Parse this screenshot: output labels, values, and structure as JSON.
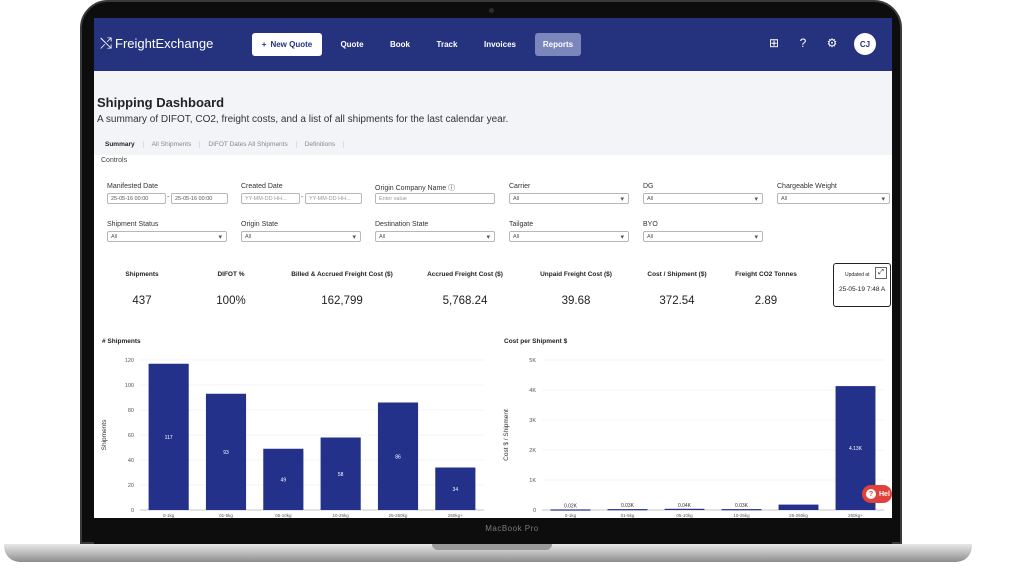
{
  "device": {
    "brand_label": "MacBook Pro"
  },
  "header": {
    "logo_text": "FreightExchange",
    "new_quote_label": "New Quote",
    "nav": [
      "Quote",
      "Book",
      "Track",
      "Invoices",
      "Reports"
    ],
    "active_nav": "Reports",
    "avatar_initials": "CJ",
    "icons": [
      "qr-add-icon",
      "help-circle-icon",
      "gear-icon"
    ]
  },
  "page": {
    "title": "Shipping Dashboard",
    "subtitle": "A summary of DIFOT, CO2, freight costs, and a list of all shipments for the last calendar year.",
    "tabs": [
      "Summary",
      "All Shipments",
      "DIFOT Dates All Shipments",
      "Definitions"
    ],
    "active_tab": "Summary",
    "controls_label": "Controls"
  },
  "filters": {
    "manifested_date": {
      "label": "Manifested Date",
      "from": "25-05-16 00:00",
      "to": "25-05-16 00:00"
    },
    "created_date": {
      "label": "Created Date",
      "from_placeholder": "YY-MM-DD HH...",
      "to_placeholder": "YY-MM-DD HH..."
    },
    "origin_company_name": {
      "label": "Origin Company Name",
      "placeholder": "Enter value"
    },
    "carrier": {
      "label": "Carrier",
      "value": "All"
    },
    "dg": {
      "label": "DG",
      "value": "All"
    },
    "chargeable_weight": {
      "label": "Chargeable Weight",
      "value": "All"
    },
    "shipment_status": {
      "label": "Shipment Status",
      "value": "All"
    },
    "origin_state": {
      "label": "Origin State",
      "value": "All"
    },
    "destination_state": {
      "label": "Destination State",
      "value": "All"
    },
    "tailgate": {
      "label": "Tailgate",
      "value": "All"
    },
    "byo": {
      "label": "BYO",
      "value": "All"
    }
  },
  "kpis": [
    {
      "label": "Shipments",
      "value": "437"
    },
    {
      "label": "DIFOT %",
      "value": "100%"
    },
    {
      "label": "Billed & Accrued Freight Cost ($)",
      "value": "162,799"
    },
    {
      "label": "Accrued Freight Cost ($)",
      "value": "5,768.24"
    },
    {
      "label": "Unpaid Freight Cost ($)",
      "value": "39.68"
    },
    {
      "label": "Cost / Shipment ($)",
      "value": "372.54"
    },
    {
      "label": "Freight CO2 Tonnes",
      "value": "2.89"
    }
  ],
  "updated": {
    "label": "Updated at",
    "value": "25-05-19 7:48 A"
  },
  "help_label": "Hel",
  "chart_data": [
    {
      "type": "bar",
      "title": "# Shipments",
      "ylabel": "Shipments",
      "ylim": [
        0,
        120
      ],
      "yticks": [
        "0",
        "20",
        "40",
        "60",
        "80",
        "100",
        "120"
      ],
      "categories": [
        "0-1kg",
        "01-5kg",
        "05-10kg",
        "10-25kg",
        "25-250kg",
        "250kg+"
      ],
      "values": [
        117,
        93,
        49,
        58,
        86,
        34
      ],
      "value_labels": [
        "117",
        "93",
        "49",
        "58",
        "86",
        "34"
      ],
      "color": "#23318a"
    },
    {
      "type": "bar",
      "title": "Cost per Shipment $",
      "ylabel": "Cost $ / Shipment",
      "ylim": [
        0,
        5000
      ],
      "yticks": [
        "0",
        "1K",
        "2K",
        "3K",
        "4K",
        "5K"
      ],
      "categories": [
        "0-1kg",
        "01-5kg",
        "05-10kg",
        "10-25kg",
        "25-250kg",
        "250kg+"
      ],
      "values": [
        20,
        30,
        40,
        30,
        180,
        4130
      ],
      "value_labels": [
        "0.02K",
        "0.03K",
        "0.04K",
        "0.03K",
        "",
        "4.13K"
      ],
      "color": "#23318a"
    }
  ]
}
